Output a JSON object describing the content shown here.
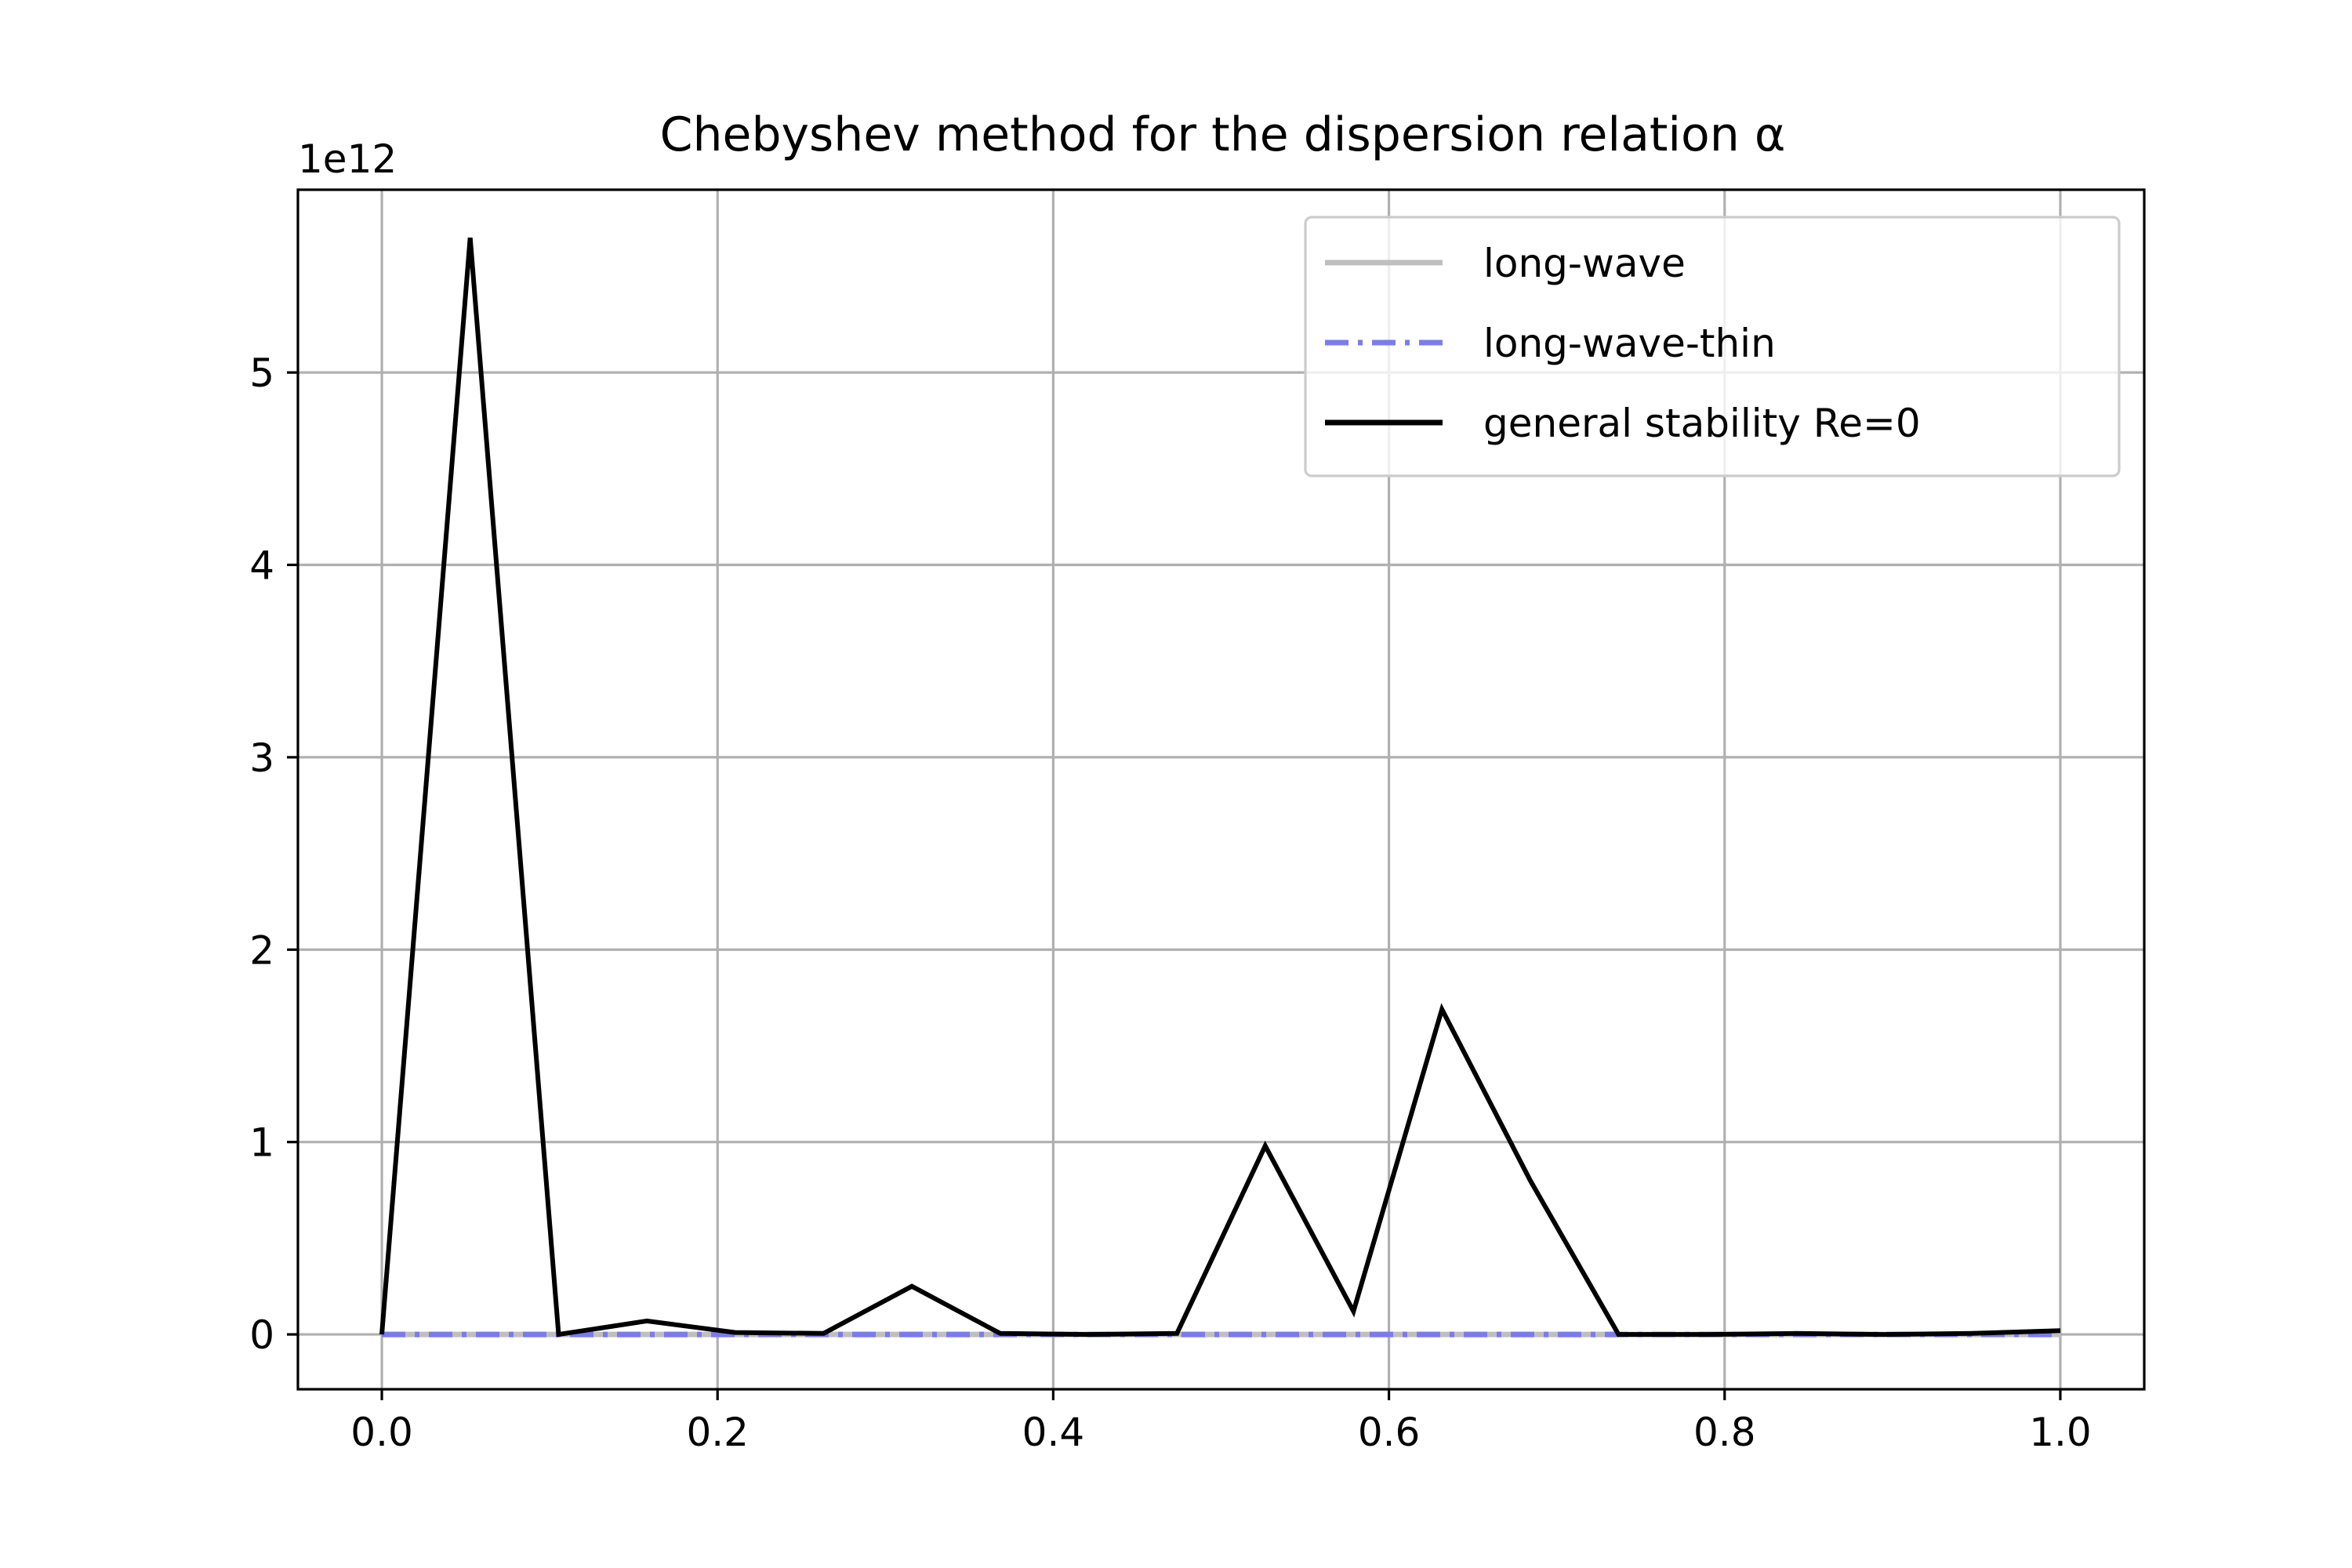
{
  "chart_data": {
    "type": "line",
    "title": "Chebyshev method for the dispersion relation α",
    "y_offset_label": "1e12",
    "xlabel": "",
    "ylabel": "",
    "xlim": [
      -0.05,
      1.05
    ],
    "ylim": [
      -0.285,
      5.95
    ],
    "grid": true,
    "legend_position": "top-right",
    "x_ticks": [
      0.0,
      0.2,
      0.4,
      0.6,
      0.8,
      1.0
    ],
    "x_tick_labels": [
      "0.0",
      "0.2",
      "0.4",
      "0.6",
      "0.8",
      "1.0"
    ],
    "y_ticks": [
      0,
      1,
      2,
      3,
      4,
      5
    ],
    "y_tick_labels": [
      "0",
      "1",
      "2",
      "3",
      "4",
      "5"
    ],
    "x": [
      0.0,
      0.0526,
      0.1053,
      0.1579,
      0.2105,
      0.2632,
      0.3158,
      0.3684,
      0.4211,
      0.4737,
      0.5263,
      0.5789,
      0.6316,
      0.6842,
      0.7368,
      0.7895,
      0.8421,
      0.8947,
      0.9474,
      1.0
    ],
    "series": [
      {
        "name": "long-wave",
        "color": "#bfbfbf",
        "style": "solid",
        "values": [
          0,
          0,
          0,
          0,
          0,
          0,
          0,
          0,
          0,
          0,
          0,
          0,
          0,
          0,
          0,
          0,
          0,
          0,
          0,
          0
        ]
      },
      {
        "name": "long-wave-thin",
        "color": "#7b7bef",
        "style": "dashdot",
        "values": [
          0,
          0,
          0,
          0,
          0,
          0,
          0,
          0,
          0,
          0,
          0,
          0,
          0,
          0,
          0,
          0,
          0,
          0,
          0,
          0
        ]
      },
      {
        "name": "general stability Re=0",
        "color": "#000000",
        "style": "solid",
        "values": [
          0,
          5.7,
          0.0,
          0.07,
          0.01,
          0.005,
          0.25,
          0.005,
          0.0,
          0.005,
          0.98,
          0.12,
          1.69,
          0.8,
          0.0,
          0.0,
          0.005,
          0.0,
          0.005,
          0.02
        ]
      }
    ]
  }
}
